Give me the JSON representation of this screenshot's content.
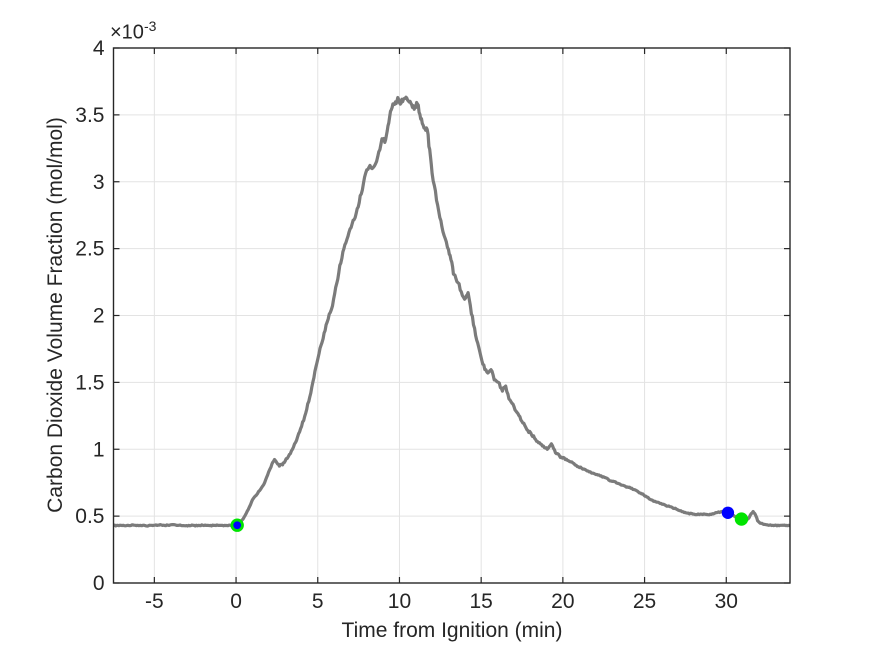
{
  "figure": {
    "background": "#ffffff",
    "axes_color": "#262626",
    "grid_color": "#e3e3e3",
    "tick_label_color": "#262626"
  },
  "chart_data": {
    "type": "line",
    "title": "",
    "xlabel": "Time from Ignition (min)",
    "ylabel": "Carbon Dioxide Volume Fraction (mol/mol)",
    "exponent": {
      "base": "×10",
      "sup": "-3"
    },
    "xlim": [
      -7.5,
      33.9
    ],
    "ylim_display": [
      0,
      4
    ],
    "value_units": "×10^-3 mol/mol",
    "grid": true,
    "x_ticks": [
      -5,
      0,
      5,
      10,
      15,
      20,
      25,
      30
    ],
    "x_tick_labels": [
      "-5",
      "0",
      "5",
      "10",
      "15",
      "20",
      "25",
      "30"
    ],
    "y_ticks": [
      0,
      0.5,
      1,
      1.5,
      2,
      2.5,
      3,
      3.5,
      4
    ],
    "y_tick_labels": [
      "0",
      "0.5",
      "1",
      "1.5",
      "2",
      "2.5",
      "3",
      "3.5",
      "4"
    ],
    "series": [
      {
        "name": "co2-volume-fraction",
        "color": "#7b7b7b",
        "line_width": 3.2,
        "noise": {
          "seed": 3,
          "amp_base": 0.004,
          "amp_scale": 0.03
        },
        "points": [
          [
            -7.5,
            0.43
          ],
          [
            -7.1,
            0.432
          ],
          [
            -6.7,
            0.429
          ],
          [
            -6.3,
            0.433
          ],
          [
            -5.9,
            0.43
          ],
          [
            -5.5,
            0.428
          ],
          [
            -5.1,
            0.431
          ],
          [
            -4.7,
            0.434
          ],
          [
            -4.3,
            0.43
          ],
          [
            -3.9,
            0.435
          ],
          [
            -3.5,
            0.43
          ],
          [
            -3.1,
            0.428
          ],
          [
            -2.7,
            0.431
          ],
          [
            -2.3,
            0.429
          ],
          [
            -1.9,
            0.432
          ],
          [
            -1.5,
            0.43
          ],
          [
            -1.1,
            0.431
          ],
          [
            -0.7,
            0.429
          ],
          [
            -0.3,
            0.431
          ],
          [
            0,
            0.433
          ],
          [
            0.25,
            0.45
          ],
          [
            0.5,
            0.49
          ],
          [
            0.75,
            0.55
          ],
          [
            1,
            0.62
          ],
          [
            1.25,
            0.66
          ],
          [
            1.5,
            0.7
          ],
          [
            1.75,
            0.75
          ],
          [
            2,
            0.83
          ],
          [
            2.2,
            0.89
          ],
          [
            2.35,
            0.92
          ],
          [
            2.5,
            0.9
          ],
          [
            2.65,
            0.88
          ],
          [
            2.85,
            0.89
          ],
          [
            3,
            0.91
          ],
          [
            3.2,
            0.95
          ],
          [
            3.45,
            1
          ],
          [
            3.7,
            1.07
          ],
          [
            3.95,
            1.15
          ],
          [
            4.2,
            1.24
          ],
          [
            4.45,
            1.36
          ],
          [
            4.7,
            1.5
          ],
          [
            4.95,
            1.65
          ],
          [
            5.2,
            1.78
          ],
          [
            5.45,
            1.9
          ],
          [
            5.7,
            2
          ],
          [
            5.9,
            2.08
          ],
          [
            6.1,
            2.2
          ],
          [
            6.35,
            2.36
          ],
          [
            6.6,
            2.5
          ],
          [
            6.85,
            2.6
          ],
          [
            7.1,
            2.68
          ],
          [
            7.35,
            2.76
          ],
          [
            7.6,
            2.88
          ],
          [
            7.8,
            3
          ],
          [
            8,
            3.08
          ],
          [
            8.2,
            3.12
          ],
          [
            8.4,
            3.1
          ],
          [
            8.6,
            3.16
          ],
          [
            8.8,
            3.26
          ],
          [
            9,
            3.33
          ],
          [
            9.15,
            3.31
          ],
          [
            9.3,
            3.42
          ],
          [
            9.45,
            3.52
          ],
          [
            9.6,
            3.58
          ],
          [
            9.75,
            3.6
          ],
          [
            9.9,
            3.62
          ],
          [
            10.05,
            3.57
          ],
          [
            10.2,
            3.6
          ],
          [
            10.35,
            3.65
          ],
          [
            10.5,
            3.62
          ],
          [
            10.65,
            3.6
          ],
          [
            10.8,
            3.56
          ],
          [
            10.95,
            3.55
          ],
          [
            11.1,
            3.57
          ],
          [
            11.25,
            3.51
          ],
          [
            11.4,
            3.44
          ],
          [
            11.55,
            3.4
          ],
          [
            11.7,
            3.37
          ],
          [
            11.85,
            3.24
          ],
          [
            12,
            3.07
          ],
          [
            12.2,
            2.92
          ],
          [
            12.4,
            2.78
          ],
          [
            12.6,
            2.66
          ],
          [
            12.8,
            2.58
          ],
          [
            13,
            2.5
          ],
          [
            13.15,
            2.42
          ],
          [
            13.3,
            2.31
          ],
          [
            13.45,
            2.28
          ],
          [
            13.65,
            2.24
          ],
          [
            13.85,
            2.14
          ],
          [
            14.05,
            2.12
          ],
          [
            14.2,
            2.17
          ],
          [
            14.4,
            2.02
          ],
          [
            14.6,
            1.9
          ],
          [
            14.85,
            1.75
          ],
          [
            15.1,
            1.64
          ],
          [
            15.35,
            1.57
          ],
          [
            15.6,
            1.6
          ],
          [
            15.8,
            1.52
          ],
          [
            16.05,
            1.5
          ],
          [
            16.3,
            1.44
          ],
          [
            16.5,
            1.47
          ],
          [
            16.7,
            1.37
          ],
          [
            16.95,
            1.33
          ],
          [
            17.25,
            1.26
          ],
          [
            17.55,
            1.2
          ],
          [
            17.85,
            1.14
          ],
          [
            18.15,
            1.1
          ],
          [
            18.45,
            1.06
          ],
          [
            18.75,
            1.025
          ],
          [
            19.05,
            1
          ],
          [
            19.3,
            1.04
          ],
          [
            19.55,
            0.98
          ],
          [
            19.85,
            0.945
          ],
          [
            20.15,
            0.925
          ],
          [
            20.55,
            0.9
          ],
          [
            20.95,
            0.87
          ],
          [
            21.35,
            0.85
          ],
          [
            21.75,
            0.825
          ],
          [
            22.15,
            0.805
          ],
          [
            22.55,
            0.79
          ],
          [
            22.95,
            0.765
          ],
          [
            23.35,
            0.745
          ],
          [
            23.75,
            0.724
          ],
          [
            24.15,
            0.71
          ],
          [
            24.55,
            0.688
          ],
          [
            24.95,
            0.658
          ],
          [
            25.35,
            0.625
          ],
          [
            25.75,
            0.605
          ],
          [
            26.15,
            0.588
          ],
          [
            26.55,
            0.57
          ],
          [
            26.95,
            0.552
          ],
          [
            27.35,
            0.53
          ],
          [
            27.75,
            0.52
          ],
          [
            28.15,
            0.512
          ],
          [
            28.55,
            0.516
          ],
          [
            28.95,
            0.51
          ],
          [
            29.35,
            0.524
          ],
          [
            29.7,
            0.532
          ],
          [
            30,
            0.528
          ],
          [
            30.25,
            0.515
          ],
          [
            30.5,
            0.5
          ],
          [
            30.75,
            0.488
          ],
          [
            30.95,
            0.478
          ],
          [
            31.15,
            0.468
          ],
          [
            31.35,
            0.48
          ],
          [
            31.52,
            0.517
          ],
          [
            31.64,
            0.533
          ],
          [
            31.78,
            0.512
          ],
          [
            31.92,
            0.466
          ],
          [
            32.08,
            0.447
          ],
          [
            32.35,
            0.437
          ],
          [
            32.7,
            0.431
          ],
          [
            33.1,
            0.43
          ],
          [
            33.5,
            0.431
          ],
          [
            33.85,
            0.43
          ]
        ]
      }
    ],
    "markers": [
      {
        "name": "ignition-marker",
        "t": 0.07,
        "v": 0.432,
        "fill": "#0000ff",
        "edge": "#00e400",
        "radius": 5.3,
        "edge_width": 2.8
      },
      {
        "name": "end-marker-blue",
        "t": 30.1,
        "v": 0.525,
        "fill": "#0000ff",
        "edge": "none",
        "radius": 6.2,
        "edge_width": 0
      },
      {
        "name": "end-marker-green",
        "t": 30.93,
        "v": 0.478,
        "fill": "#00e400",
        "edge": "none",
        "radius": 6.7,
        "edge_width": 0
      }
    ]
  }
}
